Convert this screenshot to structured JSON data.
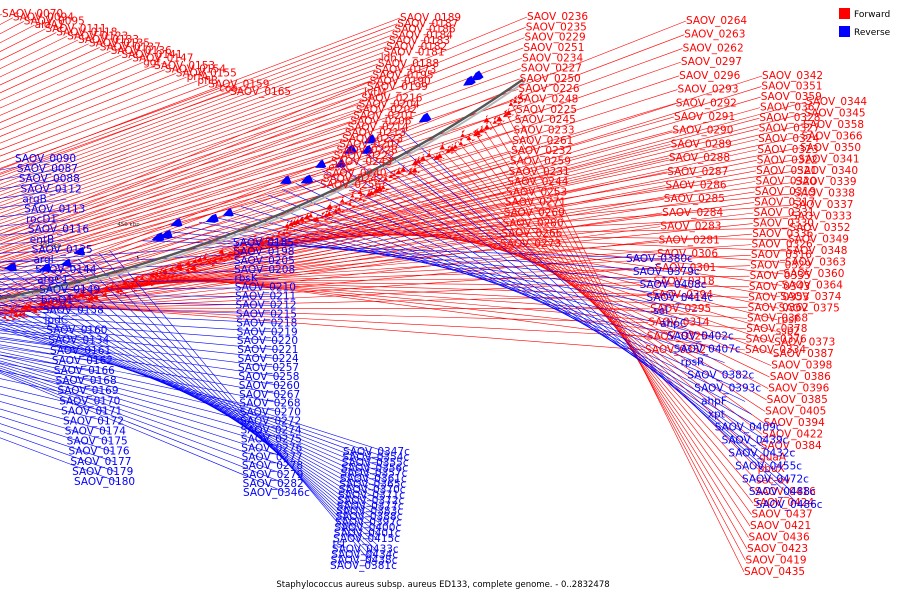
{
  "legend": [
    {
      "label": "Forward",
      "color": "#ff0000"
    },
    {
      "label": "Reverse",
      "color": "#0000ff"
    }
  ],
  "caption": "Staphylococcus aureus subsp. aureus ED133, complete genome. - 0..2832478",
  "ticks": [
    "100 kbp",
    "150 kbp",
    "200 kbp",
    "250 kbp",
    "300 kbp",
    "350 kbp",
    "400 kbp",
    "450 kbp"
  ],
  "forward_genes": [
    "SAOV_0070",
    "SAOV_0094",
    "SAOV_0095",
    "aldA1",
    "SAOV_0111",
    "SAOV_0118",
    "SAOV_0123",
    "SAOV_0133",
    "SAOV_0135",
    "SAOV_0137",
    "SAOV_0136",
    "SAOV_0141",
    "SAOV_0147",
    "ggt",
    "SAOV_0153",
    "SAOV_0154",
    "SAOV_0155",
    "prfA",
    "pflB",
    "SAOV_0159",
    "coa",
    "SAOV_0165",
    "SAOV_0189",
    "SAOV_0187",
    "SAOV_0186",
    "SAOV_0184",
    "SAOV_0183",
    "SAOV_0182",
    "SAOV_0181",
    "ldh1",
    "SAOV_0188",
    "SAOV_0173",
    "SAOV_0195",
    "SAOV_0190",
    "SAOV_0199",
    "lytM",
    "SAOV_0216",
    "SAOV_0204",
    "SAOV_0202",
    "SAOV_0201",
    "SAOV_0206",
    "SAOV_0214",
    "SAOV_0213",
    "SAOV_0223",
    "SAOV_0207",
    "SAOV_0228",
    "SAOV_0222",
    "SAOV_0243",
    "essC",
    "SAOV_0240",
    "SAOV_0242",
    "SAOV_0256",
    "SAOV_0236",
    "SAOV_0235",
    "SAOV_0229",
    "SAOV_0251",
    "SAOV_0234",
    "SAOV_0227",
    "SAOV_0250",
    "SAOV_0226",
    "SAOV_0248",
    "SAOV_0225",
    "SAOV_0245",
    "SAOV_0233",
    "SAOV_0261",
    "SAOV_0232",
    "SAOV_0259",
    "SAOV_0231",
    "SAOV_0244",
    "SAOV_0253",
    "SAOV_0271",
    "SAOV_0269",
    "SAOV_0280",
    "SAOV_0266",
    "SAOV_0273",
    "SAOV_0264",
    "SAOV_0263",
    "SAOV_0262",
    "SAOV_0297",
    "SAOV_0296",
    "SAOV_0293",
    "SAOV_0292",
    "SAOV_0291",
    "SAOV_0290",
    "SAOV_0289",
    "SAOV_0288",
    "SAOV_0287",
    "SAOV_0286",
    "SAOV_0285",
    "SAOV_0284",
    "SAOV_0283",
    "SAOV_0281",
    "SAOV_0306",
    "SAOV_0301",
    "SAOV_0318",
    "SAOV_0294",
    "SAOV_0295",
    "SAOV_0314",
    "SAOV_0325",
    "SAOV_0332",
    "SAOV_0342",
    "SAOV_0351",
    "SAOV_0359",
    "SAOV_0367",
    "SAOV_0328",
    "SAOV_0327",
    "SAOV_0324",
    "SAOV_0323",
    "SAOV_0322",
    "SAOV_0321",
    "SAOV_0320",
    "SAOV_0319",
    "SAOV_0317",
    "SAOV_0331",
    "SAOV_0330",
    "SAOV_0336",
    "SAOV_0326",
    "SAOV_0316",
    "SAOV_0329",
    "SAOV_0335",
    "SAOV_0343",
    "SAOV_0353",
    "SAOV_0362",
    "SAOV_0368",
    "SAOV_0378",
    "SAOV_0376",
    "SAOV_0334",
    "SAOV_0344",
    "SAOV_0345",
    "SAOV_0358",
    "SAOV_0366",
    "SAOV_0350",
    "SAOV_0341",
    "SAOV_0340",
    "SAOV_0339",
    "SAOV_0338",
    "SAOV_0337",
    "SAOV_0333",
    "SAOV_0352",
    "SAOV_0349",
    "SAOV_0348",
    "SAOV_0363",
    "SAOV_0360",
    "SAOV_0364",
    "SAOV_0374",
    "SAOV_0375",
    "rpsF",
    "ssb2",
    "SAOV_0373",
    "SAOV_0387",
    "SAOV_0398",
    "SAOV_0386",
    "SAOV_0396",
    "SAOV_0385",
    "SAOV_0405",
    "SAOV_0394",
    "SAOV_0422",
    "SAOV_0384",
    "guaA",
    "pbuX",
    "sec-ov",
    "SAOV_0416",
    "SAOV_0424",
    "SAOV_0437",
    "SAOV_0421",
    "SAOV_0436",
    "SAOV_0423",
    "SAOV_0419",
    "SAOV_0435",
    "SAOV_0446",
    "SAOV_0426",
    "SAOV_0442",
    "SAOV_0451",
    "SAOV_0448",
    "SAOV_0457",
    "SAOV_0443",
    "SAOV_0456",
    "SAOV_0469",
    "SAOV_0449",
    "SAOV_0463",
    "SAOV_0471",
    "SAOV_0464",
    "SAOV_0479",
    "SAOV_0470",
    "SAOV_0478",
    "SAOV_0489"
  ],
  "reverse_genes": [
    "SAOV_0090",
    "SAOV_0087",
    "SAOV_0088",
    "SAOV_0112",
    "argB",
    "SAOV_0113",
    "rocD1",
    "SAOV_0116",
    "entB",
    "SAOV_0125",
    "argI",
    "SAOV_0144",
    "argC1",
    "SAOV_0149",
    "brnQ1",
    "SAOV_0158",
    "ipdC",
    "SAOV_0160",
    "SAOV_0134",
    "SAOV_0161",
    "SAOV_0162",
    "SAOV_0166",
    "SAOV_0168",
    "SAOV_0169",
    "SAOV_0170",
    "SAOV_0171",
    "SAOV_0172",
    "SAOV_0174",
    "SAOV_0175",
    "SAOV_0176",
    "SAOV_0177",
    "SAOV_0179",
    "SAOV_0180",
    "SAOV_0185",
    "SAOV_0198",
    "SAOV_0205",
    "SAOV_0208",
    "rbsK",
    "SAOV_0210",
    "SAOV_0211",
    "SAOV_0212",
    "SAOV_0215",
    "SAOV_0218",
    "SAOV_0219",
    "SAOV_0220",
    "SAOV_0221",
    "SAOV_0224",
    "SAOV_0257",
    "SAOV_0258",
    "SAOV_0260",
    "SAOV_0267",
    "SAOV_0268",
    "SAOV_0270",
    "SAOV_0272",
    "SAOV_0274",
    "SAOV_0275",
    "SAOV_0276",
    "SAOV_0277",
    "SAOV_0278",
    "SAOV_0279",
    "SAOV_0282",
    "SAOV_0346c",
    "SAOV_0347c",
    "SAOV_0354c",
    "SAOV_0355c",
    "SAOV_0356c",
    "SAOV_0357c",
    "SAOV_0361c",
    "SAOV_0365c",
    "SAOV_0370c",
    "SAOV_0371c",
    "SAOV_0372c",
    "SAOV_0377c",
    "SAOV_0383c",
    "SAOV_0388c",
    "SAOV_0397c",
    "SAOV_0400c",
    "SAOV_0401c",
    "SAOV_0415c",
    "tst",
    "SAOV_0433c",
    "SAOV_0434c",
    "SAOV_0438c",
    "SAOV_0381c",
    "SAOV_0380c",
    "SAOV_0379c",
    "SAOV_0408c",
    "SAOV_0414c",
    "sel",
    "ahpC",
    "SAOV_0402c",
    "SAOV_0407c",
    "rpsR",
    "SAOV_0382c",
    "SAOV_0393c",
    "ahpF",
    "xpt",
    "SAOV_0409c",
    "SAOV_0439c",
    "SAOV_0432c",
    "SAOV_0455c",
    "SAOV_0472c",
    "SAOV_0488c",
    "SAOV_0486c"
  ]
}
